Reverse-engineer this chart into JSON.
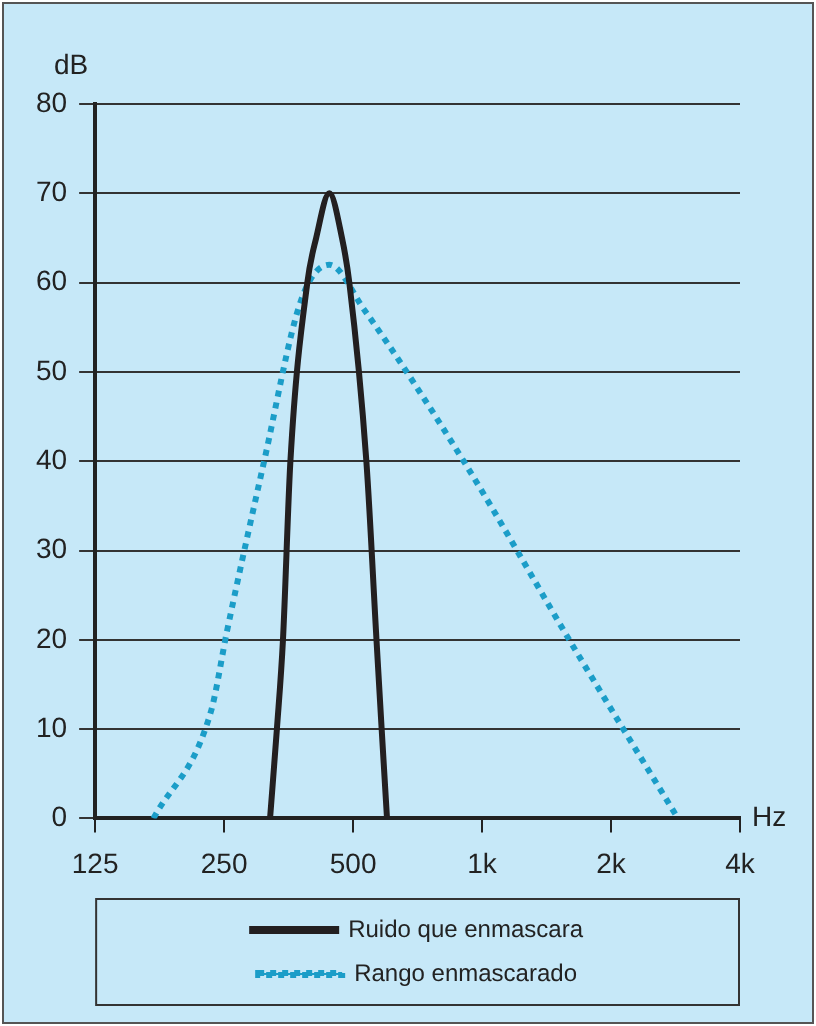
{
  "chart_data": {
    "type": "line",
    "xlabel": "Hz",
    "ylabel": "dB",
    "log": "x",
    "xlim": [
      125,
      4000
    ],
    "xticks": [
      {
        "value": 125,
        "label": "125"
      },
      {
        "value": 250,
        "label": "250"
      },
      {
        "value": 500,
        "label": "500"
      },
      {
        "value": 1000,
        "label": "1k"
      },
      {
        "value": 2000,
        "label": "2k"
      },
      {
        "value": 4000,
        "label": "4k"
      }
    ],
    "ylim": [
      0,
      80
    ],
    "yticks": [
      0,
      10,
      20,
      30,
      40,
      50,
      60,
      70,
      80
    ],
    "grid": "y",
    "legend": "bottom",
    "marker": "none",
    "series": [
      {
        "name": "Ruido que enmascara",
        "color": "#231f20",
        "line_style": "solid",
        "x": [
          320,
          332,
          343,
          357,
          391,
          410,
          440,
          471,
          490,
          537,
          567,
          583,
          600
        ],
        "values": [
          0,
          10,
          20,
          40,
          60,
          65,
          70,
          65,
          60,
          40,
          20,
          10,
          0
        ]
      },
      {
        "name": "Rango enmascarado",
        "color": "#1b9dc8",
        "line_style": "dotted",
        "x": [
          171,
          233,
          254,
          310,
          378,
          440,
          530,
          906,
          1644,
          2866
        ],
        "values": [
          0,
          12,
          21,
          40,
          58,
          62,
          57,
          40,
          19,
          0
        ]
      }
    ]
  }
}
